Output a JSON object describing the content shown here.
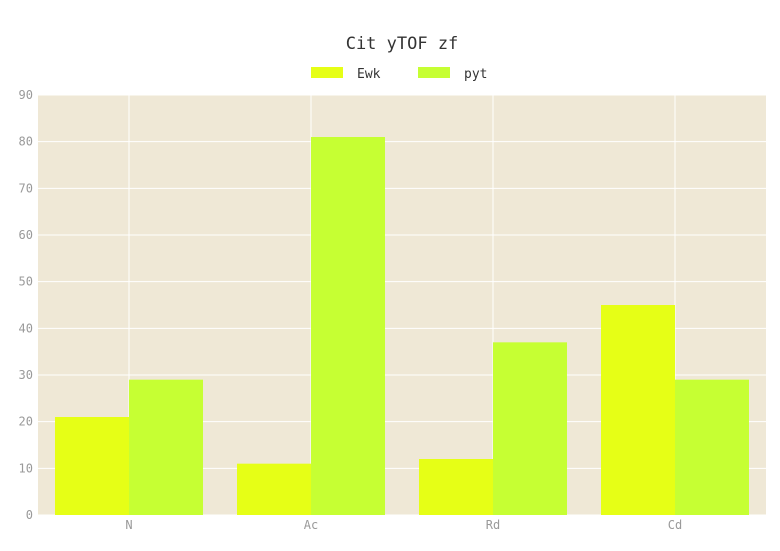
{
  "chart_data": {
    "type": "bar",
    "title": "Cit yTOF zf",
    "xlabel": "",
    "ylabel": "",
    "categories": [
      "N",
      "Ac",
      "Rd",
      "Cd"
    ],
    "series": [
      {
        "name": "Ewk",
        "values": [
          21,
          11,
          12,
          45
        ],
        "color": "#e6ff16"
      },
      {
        "name": "pyt",
        "values": [
          29,
          81,
          37,
          29
        ],
        "color": "#c6ff33"
      }
    ],
    "ylim": [
      0,
      90
    ],
    "yticks": [
      0,
      10,
      20,
      30,
      40,
      50,
      60,
      70,
      80,
      90
    ],
    "grid": true,
    "legend_position": "top-center",
    "plot_background": "#efe8d6",
    "grid_color": "#ffffff"
  }
}
